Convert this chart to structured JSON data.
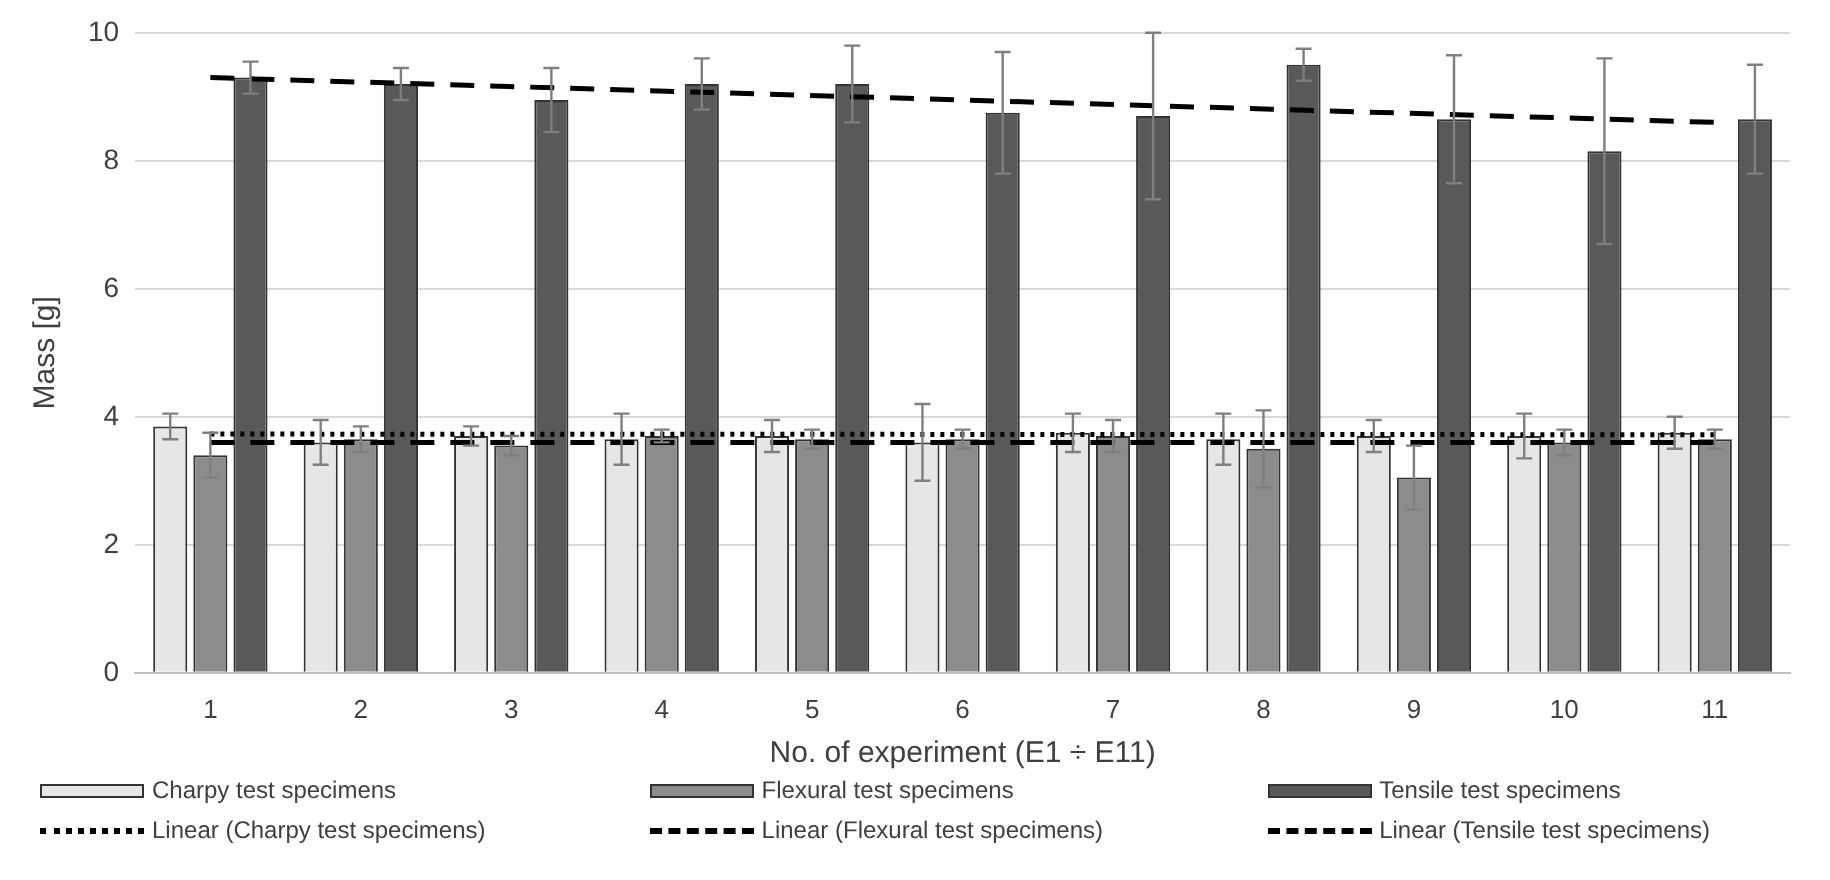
{
  "chart_data": {
    "type": "bar",
    "xlabel": "No. of experiment (E1 ÷ E11)",
    "ylabel": "Mass [g]",
    "categories": [
      "1",
      "2",
      "3",
      "4",
      "5",
      "6",
      "7",
      "8",
      "9",
      "10",
      "11"
    ],
    "series": [
      {
        "name": "Charpy test specimens",
        "color": "#e6e6e6",
        "values": [
          3.85,
          3.6,
          3.7,
          3.65,
          3.7,
          3.6,
          3.75,
          3.65,
          3.7,
          3.7,
          3.75
        ],
        "errors": [
          0.2,
          0.35,
          0.15,
          0.4,
          0.25,
          0.6,
          0.3,
          0.4,
          0.25,
          0.35,
          0.25
        ]
      },
      {
        "name": "Flexural test specimens",
        "color": "#8c8c8c",
        "values": [
          3.4,
          3.65,
          3.55,
          3.7,
          3.65,
          3.65,
          3.7,
          3.5,
          3.05,
          3.6,
          3.65
        ],
        "errors": [
          0.35,
          0.2,
          0.15,
          0.1,
          0.15,
          0.15,
          0.25,
          0.6,
          0.5,
          0.2,
          0.15
        ]
      },
      {
        "name": "Tensile test specimens",
        "color": "#595959",
        "values": [
          9.3,
          9.2,
          8.95,
          9.2,
          9.2,
          8.75,
          8.7,
          9.5,
          8.65,
          8.15,
          8.65
        ],
        "errors": [
          0.25,
          0.25,
          0.5,
          0.4,
          0.6,
          0.95,
          1.3,
          0.25,
          1.0,
          1.45,
          0.85
        ]
      },
      {
        "name": "Linear (Charpy test specimens)",
        "type": "line",
        "line_style": "dotted",
        "color": "#000000",
        "x": [
          "1",
          "11"
        ],
        "values": [
          3.73,
          3.72
        ]
      },
      {
        "name": "Linear (Flexural test specimens)",
        "type": "line",
        "line_style": "dashed",
        "color": "#000000",
        "x": [
          "1",
          "11"
        ],
        "values": [
          3.6,
          3.6
        ]
      },
      {
        "name": "Linear (Tensile test specimens)",
        "type": "line",
        "line_style": "dashed",
        "color": "#000000",
        "x": [
          "1",
          "11"
        ],
        "values": [
          9.3,
          8.6
        ]
      }
    ],
    "ylim": [
      0,
      10
    ],
    "yticks": [
      0,
      2,
      4,
      6,
      8,
      10
    ],
    "grid": "y",
    "legend": "bottom",
    "marker": "none"
  }
}
